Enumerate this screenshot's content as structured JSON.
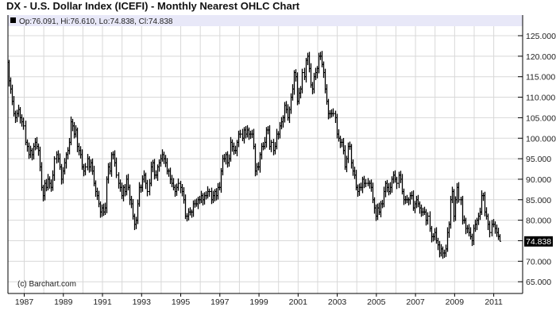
{
  "title": "DX - U.S. Dollar Index (ICEFI) - Monthly Nearest OHLC Chart",
  "header_readout": "Op:76.091, Hi:76.610, Lo:74.838, Cl:74.838",
  "copyright": "(c) Barchart.com",
  "last_price_label": "74.838",
  "colors": {
    "bar": "#000000",
    "grid": "#d8d8d8",
    "header_band": "#e8e8f8",
    "last_price_bg": "#000000"
  },
  "chart_data": {
    "type": "ohlc",
    "title": "DX - U.S. Dollar Index (ICEFI) - Monthly Nearest OHLC Chart",
    "start": "1986-03",
    "interval": "month",
    "ylim": [
      62.5,
      127.5
    ],
    "y_ticks": [
      "65.000",
      "70.000",
      "75.000",
      "80.000",
      "85.000",
      "90.000",
      "95.000",
      "100.000",
      "105.000",
      "110.000",
      "115.000",
      "120.000",
      "125.000"
    ],
    "x_ticks": [
      "1987",
      "1989",
      "1991",
      "1993",
      "1995",
      "1997",
      "1999",
      "2001",
      "2003",
      "2005",
      "2007",
      "2009",
      "2011"
    ],
    "grid": true,
    "typical_bar_range": 2.4,
    "first_open": 118.5,
    "last_bar": {
      "open": 76.091,
      "high": 76.61,
      "low": 74.838,
      "close": 74.838
    },
    "closes": [
      114,
      112,
      109,
      106,
      105,
      106,
      107,
      105,
      104,
      103,
      99,
      98,
      96,
      97,
      96,
      98,
      99,
      98,
      97,
      93,
      88,
      86,
      89,
      88,
      90,
      89,
      88,
      91,
      95,
      96,
      95,
      93,
      90,
      92,
      94,
      96,
      97,
      99,
      104,
      103,
      101,
      102,
      98,
      97,
      96,
      93,
      92,
      93,
      95,
      93,
      94,
      92,
      89,
      87,
      86,
      84,
      82,
      83,
      82,
      83,
      90,
      93,
      92,
      96,
      96,
      94,
      91,
      89,
      88,
      86,
      88,
      87,
      90,
      88,
      85,
      84,
      81,
      79,
      80,
      84,
      88,
      88,
      90,
      91,
      89,
      87,
      89,
      93,
      94,
      91,
      91,
      93,
      94,
      95,
      96,
      95,
      94,
      92,
      92,
      90,
      89,
      88,
      87,
      88,
      89,
      88,
      87,
      85,
      81,
      81,
      82,
      82,
      82,
      84,
      84,
      84,
      85,
      85,
      86,
      85,
      86,
      86,
      87,
      87,
      85,
      86,
      87,
      86,
      88,
      88,
      92,
      95,
      95,
      96,
      94,
      95,
      99,
      98,
      97,
      97,
      99,
      101,
      101,
      100,
      102,
      101,
      102,
      101,
      101,
      101,
      98,
      92,
      93,
      93,
      96,
      98,
      98,
      99,
      102,
      102,
      98,
      99,
      97,
      98,
      101,
      101,
      103,
      104,
      105,
      108,
      107,
      105,
      107,
      110,
      112,
      116,
      115,
      109,
      111,
      112,
      116,
      115,
      119,
      120,
      117,
      113,
      112,
      115,
      116,
      117,
      120,
      120,
      118,
      116,
      112,
      109,
      106,
      106,
      106,
      106,
      105,
      101,
      100,
      99,
      99,
      97,
      93,
      95,
      98,
      98,
      94,
      92,
      91,
      88,
      87,
      88,
      88,
      90,
      89,
      89,
      89,
      89,
      88,
      85,
      83,
      81,
      83,
      82,
      84,
      84,
      87,
      89,
      88,
      87,
      88,
      90,
      91,
      90,
      89,
      91,
      90,
      87,
      85,
      85,
      85,
      85,
      86,
      86,
      83,
      84,
      85,
      84,
      83,
      82,
      82,
      82,
      80,
      81,
      78,
      76,
      76,
      77,
      75,
      74,
      72,
      73,
      72,
      72,
      73,
      77,
      79,
      85,
      87,
      81,
      85,
      88,
      85,
      85,
      80,
      80,
      78,
      78,
      77,
      76,
      75,
      78,
      79,
      80,
      81,
      82,
      86,
      86,
      82,
      81,
      79,
      77,
      79,
      79,
      78,
      77,
      76,
      74.838
    ]
  }
}
